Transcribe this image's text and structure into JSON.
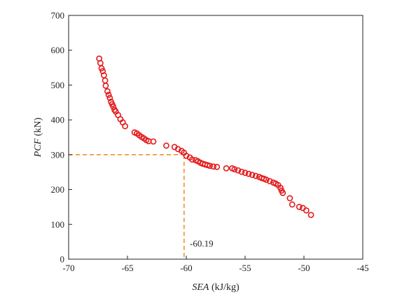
{
  "chart_data": {
    "type": "scatter",
    "title": "",
    "xlabel_italic": "SEA",
    "xlabel_rest": " (kJ/kg)",
    "ylabel_italic": "PCF",
    "ylabel_rest": " (kN)",
    "xlim": [
      -70,
      -45
    ],
    "ylim": [
      0,
      700
    ],
    "xticks": [
      -70,
      -65,
      -60,
      -55,
      -50,
      -45
    ],
    "yticks": [
      0,
      100,
      200,
      300,
      400,
      500,
      600,
      700
    ],
    "grid": false,
    "legend": "none",
    "marker": "hollow-circle",
    "marker_color": "#e31a1c",
    "reference_lines": {
      "x": -60.19,
      "y": 300,
      "color": "#f0922e",
      "style": "dashed",
      "label": "-60.19"
    },
    "points": [
      {
        "x": -67.4,
        "y": 576
      },
      {
        "x": -67.3,
        "y": 563
      },
      {
        "x": -67.2,
        "y": 548
      },
      {
        "x": -67.1,
        "y": 540
      },
      {
        "x": -67.0,
        "y": 528
      },
      {
        "x": -66.9,
        "y": 513
      },
      {
        "x": -66.85,
        "y": 498
      },
      {
        "x": -66.7,
        "y": 482
      },
      {
        "x": -66.6,
        "y": 472
      },
      {
        "x": -66.5,
        "y": 463
      },
      {
        "x": -66.4,
        "y": 452
      },
      {
        "x": -66.3,
        "y": 445
      },
      {
        "x": -66.2,
        "y": 438
      },
      {
        "x": -66.1,
        "y": 429
      },
      {
        "x": -66.0,
        "y": 424
      },
      {
        "x": -65.8,
        "y": 414
      },
      {
        "x": -65.6,
        "y": 402
      },
      {
        "x": -65.4,
        "y": 393
      },
      {
        "x": -65.2,
        "y": 382
      },
      {
        "x": -64.4,
        "y": 364
      },
      {
        "x": -64.2,
        "y": 361
      },
      {
        "x": -64.0,
        "y": 356
      },
      {
        "x": -63.8,
        "y": 351
      },
      {
        "x": -63.6,
        "y": 347
      },
      {
        "x": -63.4,
        "y": 342
      },
      {
        "x": -63.2,
        "y": 339
      },
      {
        "x": -62.8,
        "y": 338
      },
      {
        "x": -61.7,
        "y": 326
      },
      {
        "x": -61.0,
        "y": 322
      },
      {
        "x": -60.7,
        "y": 316
      },
      {
        "x": -60.4,
        "y": 311
      },
      {
        "x": -60.2,
        "y": 306
      },
      {
        "x": -60.0,
        "y": 297
      },
      {
        "x": -59.7,
        "y": 292
      },
      {
        "x": -59.5,
        "y": 286
      },
      {
        "x": -59.2,
        "y": 284
      },
      {
        "x": -59.0,
        "y": 281
      },
      {
        "x": -58.8,
        "y": 277
      },
      {
        "x": -58.6,
        "y": 274
      },
      {
        "x": -58.4,
        "y": 272
      },
      {
        "x": -58.2,
        "y": 270
      },
      {
        "x": -58.0,
        "y": 268
      },
      {
        "x": -57.7,
        "y": 266
      },
      {
        "x": -57.4,
        "y": 265
      },
      {
        "x": -56.6,
        "y": 261
      },
      {
        "x": -56.1,
        "y": 261
      },
      {
        "x": -55.9,
        "y": 258
      },
      {
        "x": -55.6,
        "y": 255
      },
      {
        "x": -55.3,
        "y": 251
      },
      {
        "x": -55.0,
        "y": 248
      },
      {
        "x": -54.7,
        "y": 245
      },
      {
        "x": -54.4,
        "y": 242
      },
      {
        "x": -54.1,
        "y": 239
      },
      {
        "x": -53.8,
        "y": 236
      },
      {
        "x": -53.6,
        "y": 233
      },
      {
        "x": -53.4,
        "y": 231
      },
      {
        "x": -53.2,
        "y": 228
      },
      {
        "x": -52.9,
        "y": 224
      },
      {
        "x": -52.6,
        "y": 220
      },
      {
        "x": -52.4,
        "y": 217
      },
      {
        "x": -52.2,
        "y": 213
      },
      {
        "x": -52.0,
        "y": 205
      },
      {
        "x": -51.9,
        "y": 197
      },
      {
        "x": -51.8,
        "y": 190
      },
      {
        "x": -51.2,
        "y": 175
      },
      {
        "x": -51.0,
        "y": 157
      },
      {
        "x": -50.4,
        "y": 150
      },
      {
        "x": -50.1,
        "y": 147
      },
      {
        "x": -49.8,
        "y": 140
      },
      {
        "x": -49.4,
        "y": 127
      }
    ]
  }
}
